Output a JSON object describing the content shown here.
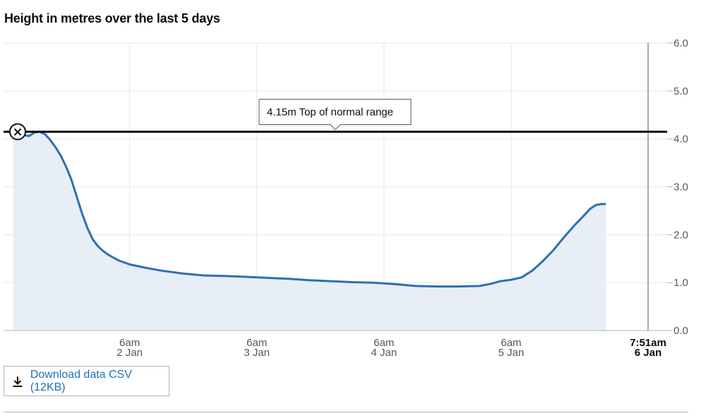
{
  "chart_data": {
    "type": "area",
    "title": "Height in metres over the last 5 days",
    "ylim": [
      0,
      6
    ],
    "y_ticks": [
      "0.0",
      "1.0",
      "2.0",
      "3.0",
      "4.0",
      "5.0",
      "6.0"
    ],
    "x_ticks": [
      {
        "time": "6am",
        "date": "2 Jan",
        "hour": 30
      },
      {
        "time": "6am",
        "date": "3 Jan",
        "hour": 54
      },
      {
        "time": "6am",
        "date": "4 Jan",
        "hour": 78
      },
      {
        "time": "6am",
        "date": "5 Jan",
        "hour": 102
      }
    ],
    "latest": {
      "time": "7:51am",
      "date": "6 Jan",
      "hour": 127.85
    },
    "threshold": {
      "value": 4.15,
      "label": "4.15m Top of normal range"
    },
    "grid": true,
    "series": [
      {
        "points": [
          [
            8,
            4.06
          ],
          [
            9,
            4.05
          ],
          [
            10,
            4.08
          ],
          [
            11,
            4.06
          ],
          [
            12,
            4.13
          ],
          [
            13,
            4.15
          ],
          [
            14,
            4.1
          ],
          [
            15,
            3.98
          ],
          [
            16,
            3.83
          ],
          [
            17,
            3.65
          ],
          [
            18,
            3.42
          ],
          [
            19,
            3.15
          ],
          [
            20,
            2.8
          ],
          [
            21,
            2.45
          ],
          [
            22,
            2.15
          ],
          [
            23,
            1.91
          ],
          [
            24,
            1.76
          ],
          [
            25,
            1.66
          ],
          [
            26,
            1.58
          ],
          [
            27,
            1.52
          ],
          [
            28,
            1.46
          ],
          [
            30,
            1.38
          ],
          [
            33,
            1.31
          ],
          [
            36,
            1.25
          ],
          [
            40,
            1.19
          ],
          [
            44,
            1.15
          ],
          [
            48,
            1.14
          ],
          [
            52,
            1.12
          ],
          [
            56,
            1.1
          ],
          [
            60,
            1.08
          ],
          [
            64,
            1.05
          ],
          [
            68,
            1.03
          ],
          [
            72,
            1.01
          ],
          [
            76,
            1.0
          ],
          [
            80,
            0.97
          ],
          [
            84,
            0.93
          ],
          [
            88,
            0.92
          ],
          [
            92,
            0.92
          ],
          [
            96,
            0.93
          ],
          [
            98,
            0.97
          ],
          [
            100,
            1.03
          ],
          [
            102,
            1.06
          ],
          [
            104,
            1.11
          ],
          [
            106,
            1.25
          ],
          [
            108,
            1.45
          ],
          [
            110,
            1.68
          ],
          [
            112,
            1.95
          ],
          [
            114,
            2.2
          ],
          [
            116,
            2.43
          ],
          [
            117,
            2.55
          ],
          [
            118,
            2.62
          ],
          [
            119,
            2.64
          ],
          [
            119.9,
            2.64
          ]
        ]
      }
    ]
  },
  "controls": {
    "download_label": "Download data CSV (12KB)"
  },
  "colors": {
    "line": "#2e6fb2",
    "fill": "#e8eef6",
    "grid": "#e5e5e5",
    "axis_text": "#505a5f",
    "threshold": "#0b0c0c",
    "link": "#1d70b8"
  }
}
